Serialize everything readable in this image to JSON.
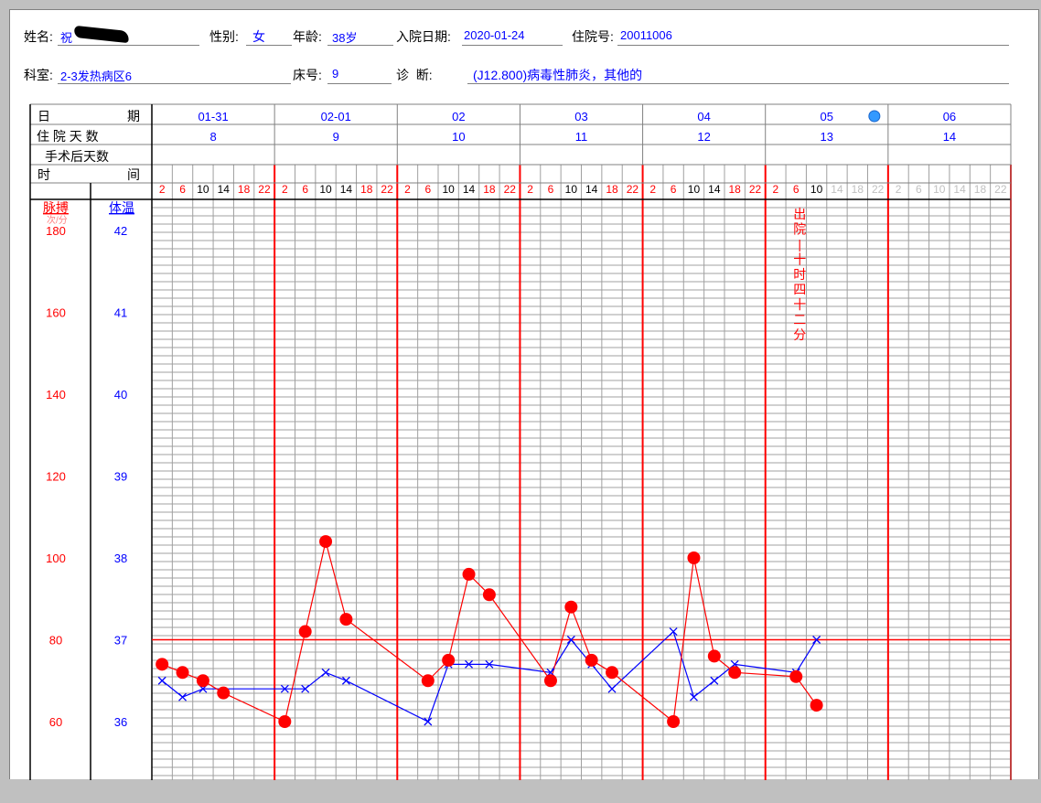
{
  "header": {
    "name_label": "姓名:",
    "name_value": "祝",
    "gender_label": "性别:",
    "gender_value": "女",
    "age_label": "年龄:",
    "age_value": "38岁",
    "admit_label": "入院日期:",
    "admit_value": "2020-01-24",
    "inpatient_no_label": "住院号:",
    "inpatient_no_value": "20011006",
    "dept_label": "科室:",
    "dept_value": "2-3发热病区6",
    "bed_label": "床号:",
    "bed_value": "9",
    "diag_label": "诊  断:",
    "diag_value": "(J12.800)病毒性肺炎，其他的"
  },
  "rows": {
    "date_label": [
      "日",
      "期"
    ],
    "days_label": "住 院 天 数",
    "postop_label": "手术后天数",
    "time_label": [
      "时",
      "间"
    ],
    "pulse_label": "脉搏",
    "pulse_unit": "次/分",
    "temp_label": "体温"
  },
  "days": [
    {
      "date": "01-31",
      "hosp_day": "8"
    },
    {
      "date": "02-01",
      "hosp_day": "9"
    },
    {
      "date": "02",
      "hosp_day": "10"
    },
    {
      "date": "03",
      "hosp_day": "11"
    },
    {
      "date": "04",
      "hosp_day": "12"
    },
    {
      "date": "05",
      "hosp_day": "13"
    },
    {
      "date": "06",
      "hosp_day": "14"
    }
  ],
  "time_slots": [
    "2",
    "6",
    "10",
    "14",
    "18",
    "22"
  ],
  "pulse_ticks": [
    "180",
    "160",
    "140",
    "120",
    "100",
    "80",
    "60"
  ],
  "temp_ticks": [
    "42",
    "41",
    "40",
    "39",
    "38",
    "37",
    "36"
  ],
  "discharge_note": "出院 | 十时四十二分",
  "colors": {
    "pulse": "#ff0000",
    "temperature": "#0000ff",
    "grid": "#a0a0a0",
    "day_separator": "#ff0000",
    "slot_red": "#ff0000",
    "slot_black": "#000000",
    "slot_gray": "#c0c0c0",
    "info_icon": "#3399ff"
  },
  "chart_data": {
    "type": "line",
    "x_unit": "time slot index (6 slots per day: 2,6,10,14,18,22)",
    "pulse_range": [
      50,
      185
    ],
    "temp_range": [
      35.5,
      42.1
    ],
    "reference_line_temp": 37,
    "series": [
      {
        "name": "脉搏",
        "marker": "circle",
        "color": "#ff0000",
        "points": [
          [
            0,
            74
          ],
          [
            1,
            72
          ],
          [
            2,
            70
          ],
          [
            3,
            67
          ],
          [
            6,
            60
          ],
          [
            7,
            82
          ],
          [
            8,
            104
          ],
          [
            9,
            85
          ],
          [
            13,
            70
          ],
          [
            14,
            75
          ],
          [
            15,
            96
          ],
          [
            16,
            91
          ],
          [
            19,
            70
          ],
          [
            20,
            88
          ],
          [
            21,
            75
          ],
          [
            22,
            72
          ],
          [
            25,
            60
          ],
          [
            26,
            100
          ],
          [
            27,
            76
          ],
          [
            28,
            72
          ],
          [
            31,
            71
          ],
          [
            32,
            64
          ]
        ]
      },
      {
        "name": "体温",
        "marker": "x",
        "color": "#0000ff",
        "points": [
          [
            0,
            36.5
          ],
          [
            1,
            36.3
          ],
          [
            2,
            36.4
          ],
          [
            6,
            36.4
          ],
          [
            7,
            36.4
          ],
          [
            8,
            36.6
          ],
          [
            9,
            36.5
          ],
          [
            13,
            36.0
          ],
          [
            14,
            36.7
          ],
          [
            15,
            36.7
          ],
          [
            16,
            36.7
          ],
          [
            19,
            36.6
          ],
          [
            20,
            37.0
          ],
          [
            21,
            36.7
          ],
          [
            22,
            36.4
          ],
          [
            25,
            37.1
          ],
          [
            26,
            36.3
          ],
          [
            27,
            36.5
          ],
          [
            28,
            36.7
          ],
          [
            31,
            36.6
          ],
          [
            32,
            37.0
          ]
        ]
      }
    ]
  }
}
